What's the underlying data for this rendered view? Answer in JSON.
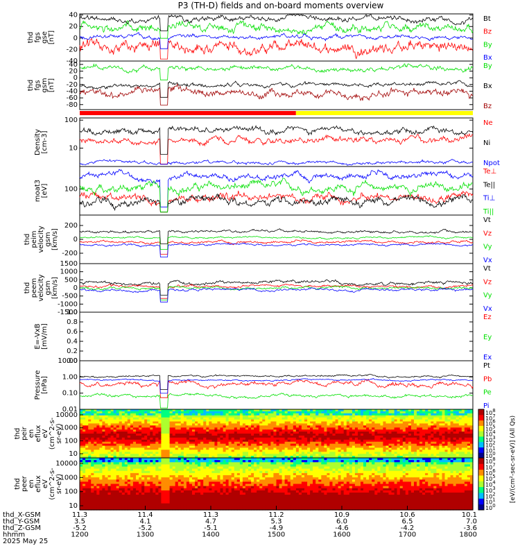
{
  "title": "P3 (TH-D) fields and on-board moments overview",
  "chart_data": {
    "type": "line",
    "panels": [
      {
        "id": "fgs-gse",
        "ylabel": [
          "thd",
          "fgs",
          "gse",
          "[nT]"
        ],
        "yticks": [
          "40",
          "20",
          "0",
          "-20",
          "-40"
        ],
        "ylim": [
          -40,
          42
        ],
        "scale": "linear",
        "legend": [
          {
            "name": "Bt",
            "color": "#000000",
            "level": 33,
            "amp": 4
          },
          {
            "name": "Bz",
            "color": "#ff0000",
            "level": -16,
            "amp": 8
          },
          {
            "name": "By",
            "color": "#00e000",
            "level": 20,
            "amp": 6
          },
          {
            "name": "Bx",
            "color": "#0000ff",
            "level": 2,
            "amp": 3
          }
        ]
      },
      {
        "id": "fgs-gsm",
        "ylabel": [
          "thd",
          "fgs",
          "gsm",
          "[nT]"
        ],
        "yticks": [
          "40",
          "20",
          "0",
          "-20",
          "-40",
          "-60",
          "-80"
        ],
        "ylim": [
          -95,
          50
        ],
        "scale": "linear",
        "legend": [
          {
            "name": "By",
            "color": "#00e000",
            "level": 30,
            "amp": 6
          },
          {
            "name": "Bx",
            "color": "#000000",
            "level": -22,
            "amp": 5
          },
          {
            "name": "Bz",
            "color": "#a00000",
            "level": -45,
            "amp": 9
          }
        ]
      },
      {
        "id": "density",
        "ylabel": [
          "Density",
          "[cm-3]"
        ],
        "yticks": [
          "100",
          "10"
        ],
        "ylim": [
          2.2,
          120
        ],
        "scale": "log",
        "legend": [
          {
            "name": "Ne",
            "color": "#ff0000",
            "level": 18,
            "amp": 0.1
          },
          {
            "name": "Ni",
            "color": "#000000",
            "level": 40,
            "amp": 0.1
          },
          {
            "name": "Npot",
            "color": "#0000ff",
            "level": 3,
            "amp": 0.05
          }
        ]
      },
      {
        "id": "temperature",
        "ylabel": [
          "moat3",
          "[eV]"
        ],
        "yticks": [
          "100"
        ],
        "ylim": [
          20,
          400
        ],
        "scale": "log",
        "legend": [
          {
            "name": "Te⊥",
            "color": "#ff0000",
            "level": 60,
            "amp": 0.1
          },
          {
            "name": "Te||",
            "color": "#000000",
            "level": 45,
            "amp": 0.1
          },
          {
            "name": "Ti⊥",
            "color": "#0000ff",
            "level": 220,
            "amp": 0.08
          },
          {
            "name": "Ti||",
            "color": "#00e000",
            "level": 110,
            "amp": 0.1
          }
        ]
      },
      {
        "id": "peim-velocity",
        "ylabel": [
          "thd",
          "peim",
          "velocity",
          "gsm",
          "[km/s]"
        ],
        "yticks": [
          "200",
          "0",
          "-200"
        ],
        "ylim": [
          -350,
          350
        ],
        "scale": "linear",
        "legend": [
          {
            "name": "Vt",
            "color": "#000000",
            "level": 110,
            "amp": 15
          },
          {
            "name": "Vz",
            "color": "#ff0000",
            "level": -40,
            "amp": 15
          },
          {
            "name": "Vy",
            "color": "#00e000",
            "level": 30,
            "amp": 10
          },
          {
            "name": "Vx",
            "color": "#0000ff",
            "level": -80,
            "amp": 12
          }
        ]
      },
      {
        "id": "peem-velocity",
        "ylabel": [
          "thd",
          "peem",
          "velocity",
          "gsm",
          "[km/s]"
        ],
        "yticks": [
          "1500",
          "1000",
          "500",
          "0",
          "-500",
          "-1000",
          "-1500"
        ],
        "ylim": [
          -1500,
          1500
        ],
        "scale": "linear",
        "legend": [
          {
            "name": "Vt",
            "color": "#000000",
            "level": 300,
            "amp": 80
          },
          {
            "name": "Vz",
            "color": "#ff0000",
            "level": 100,
            "amp": 60
          },
          {
            "name": "Vy",
            "color": "#00e000",
            "level": 0,
            "amp": 60
          },
          {
            "name": "Vx",
            "color": "#0000ff",
            "level": -120,
            "amp": 60
          }
        ]
      },
      {
        "id": "efield",
        "ylabel": [
          "E=-VxB",
          "[mV/m]"
        ],
        "yticks": [
          "1.0",
          "0.8",
          "0.6",
          "0.4",
          "0.2",
          "0.0"
        ],
        "ylim": [
          0,
          1.0
        ],
        "scale": "linear",
        "legend": [
          {
            "name": "Ez",
            "color": "#ff0000",
            "level": null,
            "amp": 0
          },
          {
            "name": "Ey",
            "color": "#00e000",
            "level": null,
            "amp": 0
          },
          {
            "name": "Ex",
            "color": "#0000ff",
            "level": null,
            "amp": 0
          }
        ]
      },
      {
        "id": "pressure",
        "ylabel": [
          "Pressure",
          "[nPa]"
        ],
        "yticks": [
          "10.00",
          "1.00",
          "0.10",
          "0.01"
        ],
        "ylim": [
          0.01,
          10
        ],
        "scale": "log",
        "legend": [
          {
            "name": "Pt",
            "color": "#000000",
            "level": 1.1,
            "amp": 0.05
          },
          {
            "name": "Pb",
            "color": "#ff0000",
            "level": 0.35,
            "amp": 0.12
          },
          {
            "name": "Pe",
            "color": "#00e000",
            "level": 0.07,
            "amp": 0.08
          },
          {
            "name": "Pi",
            "color": "#0000ff",
            "level": 0.65,
            "amp": 0.04
          }
        ]
      }
    ],
    "spectrograms": [
      {
        "id": "peir",
        "ylabel": [
          "thd",
          "peir",
          "en",
          "eflux",
          "eV",
          "(cm^2-s-",
          "sr-eV)"
        ],
        "yticks": [
          "10000",
          "1000",
          "100",
          "10"
        ]
      },
      {
        "id": "peer",
        "ylabel": [
          "thd",
          "peer",
          "en",
          "eflux",
          "eV",
          "(cm^2-s-",
          "sr-eV)"
        ],
        "yticks": [
          "10000",
          "1000",
          "100",
          "10"
        ]
      }
    ],
    "colorbar": {
      "label": "[eV/(cm^2-sec-sr-eV)] (All Qs)",
      "ticks_upper": [
        "10^8",
        "10^7",
        "10^6",
        "10^5",
        "10^4",
        "10^3",
        "10^2",
        "10^1",
        "10^0"
      ],
      "ticks_lower": [
        "10^8",
        "10^7",
        "10^6",
        "10^5",
        "10^4",
        "10^3",
        "10^2",
        "10^1",
        "10^0"
      ]
    },
    "mode_bar": {
      "red_until_fraction": 0.55,
      "red": "#ff0000",
      "yellow": "#ffff00"
    },
    "gap": {
      "start_fraction": 0.205,
      "end_fraction": 0.225
    },
    "x_axis": {
      "rows": [
        {
          "label": "thd_X-GSM",
          "values": [
            "11.3",
            "11.4",
            "11.3",
            "11.2",
            "10.9",
            "10.6",
            "10.1"
          ]
        },
        {
          "label": "thd_Y-GSM",
          "values": [
            "3.5",
            "4.1",
            "4.7",
            "5.3",
            "6.0",
            "6.5",
            "7.0"
          ]
        },
        {
          "label": "thd_Z-GSM",
          "values": [
            "-5.2",
            "-5.2",
            "-5.1",
            "-4.9",
            "-4.6",
            "-4.2",
            "-3.6"
          ]
        },
        {
          "label": "hhmm",
          "values": [
            "1200",
            "1300",
            "1400",
            "1500",
            "1600",
            "1700",
            "1800"
          ]
        }
      ],
      "date": "2025 May 25"
    }
  }
}
